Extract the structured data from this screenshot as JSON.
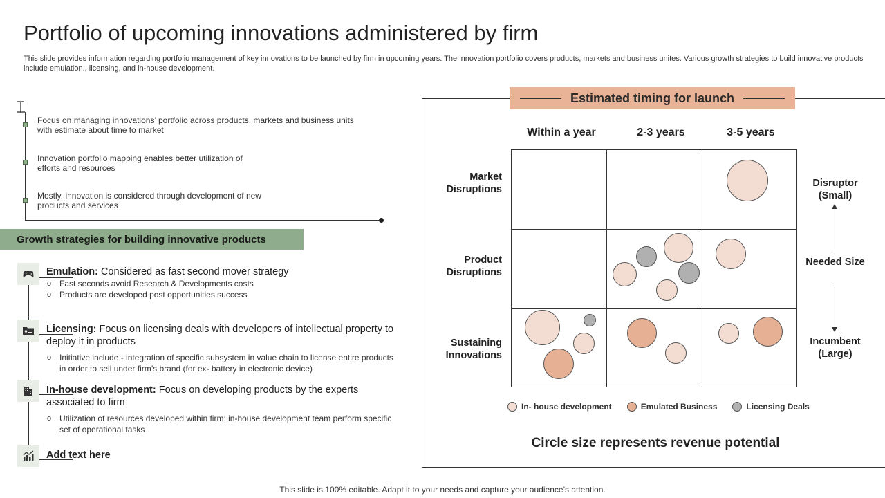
{
  "title": "Portfolio of upcoming innovations administered by firm",
  "subtitle": "This slide provides information regarding portfolio management of key innovations to be launched by firm in upcoming years. The innovation portfolio covers products, markets and business unites. Various growth strategies to build innovative products include emulation., licensing, and in-house development.",
  "bullets": [
    "Focus on managing innovations’ portfolio across products, markets and business units with estimate about time to market",
    "Innovation portfolio mapping enables better utilization of efforts and resources",
    "Mostly, innovation is considered through development of new products and services"
  ],
  "growth": {
    "banner": "Growth strategies for building innovative products",
    "strategies": [
      {
        "icon": "gamepad-icon",
        "name": "Emulation:",
        "desc": " Considered as fast second mover strategy",
        "subs": [
          "Fast seconds avoid  Research & Developments  costs",
          "Products are developed  post opportunities  success"
        ]
      },
      {
        "icon": "id-card-icon",
        "name": "Licensing:",
        "desc": " Focus on licensing deals with developers of intellectual property to deploy it in products",
        "subs": [
          "Initiative include - integration of specific subsystem in value  chain to license entire products in order to sell under firm’s brand (for  ex- battery in electronic device)"
        ]
      },
      {
        "icon": "building-icon",
        "name": "In-house development:",
        "desc": " Focus on developing products by the experts associated to firm",
        "subs": [
          "Utilization of resources developed  within firm; in-house development  team perform specific set of operational  tasks"
        ]
      },
      {
        "icon": "growth-chart-icon",
        "name": "Add text here",
        "desc": "",
        "subs": []
      }
    ]
  },
  "matrix": {
    "banner": "Estimated timing for launch",
    "columns": [
      "Within a year",
      "2-3 years",
      "3-5 years"
    ],
    "rows": [
      "Market Disruptions",
      "Product Disruptions",
      "Sustaining Innovations"
    ],
    "right_labels": {
      "top": "Disruptor (Small)",
      "middle": "Needed Size",
      "bottom": "Incumbent (Large)"
    },
    "legend": [
      {
        "label": "In- house development",
        "color": "#f3ddd2"
      },
      {
        "label": "Emulated Business",
        "color": "#e6b094"
      },
      {
        "label": "Licensing Deals",
        "color": "#b0b0b0"
      }
    ],
    "caption": "Circle size represents revenue potential",
    "colors": {
      "inhouse": "#f3ddd2",
      "emulated": "#e6b094",
      "licensing": "#b0b0b0"
    }
  },
  "chart_data": {
    "type": "scatter",
    "title": "Estimated timing for launch",
    "categories_x": [
      "Within a year",
      "2-3 years",
      "3-5 years"
    ],
    "categories_y": [
      "Market Disruptions",
      "Product Disruptions",
      "Sustaining Innovations"
    ],
    "series": [
      {
        "name": "In- house development",
        "points": [
          {
            "x": "3-5 years",
            "y": "Market Disruptions",
            "size": 3
          },
          {
            "x": "2-3 years",
            "y": "Product Disruptions",
            "size": 2.4
          },
          {
            "x": "2-3 years",
            "y": "Product Disruptions",
            "size": 2
          },
          {
            "x": "2-3 years",
            "y": "Product Disruptions",
            "size": 1.5
          },
          {
            "x": "3-5 years",
            "y": "Product Disruptions",
            "size": 2.2
          },
          {
            "x": "Within a year",
            "y": "Sustaining Innovations",
            "size": 2.5
          },
          {
            "x": "Within a year",
            "y": "Sustaining Innovations",
            "size": 1.5
          },
          {
            "x": "2-3 years",
            "y": "Sustaining Innovations",
            "size": 1.5
          },
          {
            "x": "3-5 years",
            "y": "Sustaining Innovations",
            "size": 1.5
          }
        ]
      },
      {
        "name": "Emulated Business",
        "points": [
          {
            "x": "Within a year",
            "y": "Sustaining Innovations",
            "size": 2.2
          },
          {
            "x": "2-3 years",
            "y": "Sustaining Innovations",
            "size": 2.1
          },
          {
            "x": "3-5 years",
            "y": "Sustaining Innovations",
            "size": 2.1
          }
        ]
      },
      {
        "name": "Licensing Deals",
        "points": [
          {
            "x": "2-3 years",
            "y": "Product Disruptions",
            "size": 1.5
          },
          {
            "x": "2-3 years",
            "y": "Product Disruptions",
            "size": 1.5
          },
          {
            "x": "Within a year",
            "y": "Sustaining Innovations",
            "size": 0.9
          }
        ]
      }
    ]
  },
  "footer": "This slide is 100% editable. Adapt it to your needs and capture your audience’s attention."
}
